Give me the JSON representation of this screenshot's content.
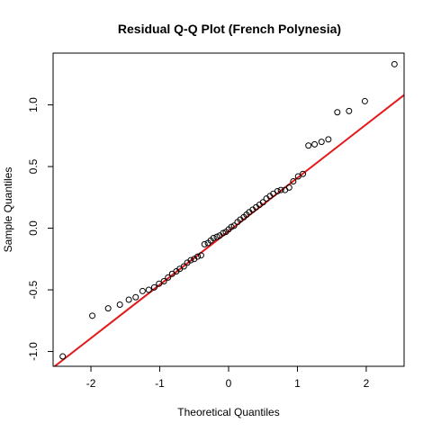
{
  "chart_data": {
    "type": "scatter",
    "title": "Residual Q-Q Plot (French Polynesia)",
    "xlabel": "Theoretical Quantiles",
    "ylabel": "Sample Quantiles",
    "xlim": [
      -2.55,
      2.55
    ],
    "ylim": [
      -1.12,
      1.42
    ],
    "xticks": [
      -2,
      -1,
      0,
      1,
      2
    ],
    "yticks": [
      -1.0,
      -0.5,
      0.0,
      0.5,
      1.0
    ],
    "ytick_labels": [
      "-1.0",
      "-0.5",
      "0.0",
      "0.5",
      "1.0"
    ],
    "grid": false,
    "legend": "none",
    "point_color": "#000000",
    "line_color": "#e31a1c",
    "reference_line": {
      "x": [
        -2.55,
        2.55
      ],
      "y": [
        -1.13,
        1.08
      ]
    },
    "points": {
      "x": [
        -2.41,
        -1.98,
        -1.75,
        -1.58,
        -1.45,
        -1.35,
        -1.25,
        -1.16,
        -1.08,
        -1.01,
        -0.94,
        -0.88,
        -0.82,
        -0.76,
        -0.71,
        -0.65,
        -0.6,
        -0.55,
        -0.5,
        -0.45,
        -0.4,
        -0.35,
        -0.3,
        -0.26,
        -0.22,
        -0.17,
        -0.13,
        -0.08,
        -0.04,
        0.0,
        0.04,
        0.08,
        0.13,
        0.17,
        0.22,
        0.26,
        0.3,
        0.35,
        0.4,
        0.45,
        0.5,
        0.55,
        0.6,
        0.65,
        0.71,
        0.76,
        0.82,
        0.88,
        0.94,
        1.01,
        1.08,
        1.16,
        1.25,
        1.35,
        1.45,
        1.58,
        1.75,
        1.98,
        2.41
      ],
      "y": [
        -1.04,
        -0.71,
        -0.65,
        -0.62,
        -0.58,
        -0.56,
        -0.51,
        -0.5,
        -0.48,
        -0.45,
        -0.43,
        -0.4,
        -0.37,
        -0.35,
        -0.33,
        -0.31,
        -0.28,
        -0.26,
        -0.25,
        -0.23,
        -0.22,
        -0.13,
        -0.12,
        -0.1,
        -0.08,
        -0.07,
        -0.06,
        -0.04,
        -0.03,
        -0.01,
        0.01,
        0.02,
        0.05,
        0.07,
        0.09,
        0.11,
        0.13,
        0.15,
        0.17,
        0.19,
        0.21,
        0.24,
        0.26,
        0.28,
        0.3,
        0.31,
        0.31,
        0.33,
        0.38,
        0.42,
        0.44,
        0.67,
        0.68,
        0.7,
        0.72,
        0.94,
        0.95,
        1.03,
        1.33
      ]
    }
  }
}
